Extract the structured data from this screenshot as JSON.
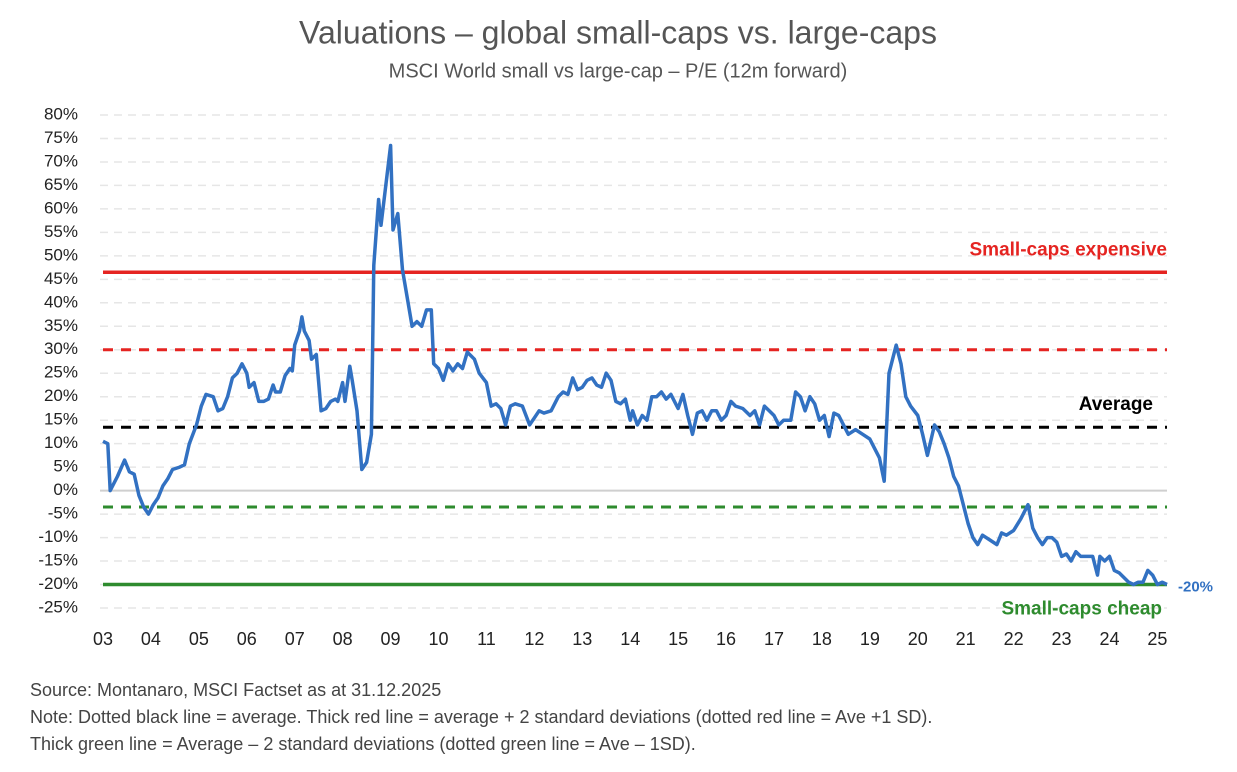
{
  "chart_data": {
    "type": "line",
    "title": "Valuations – global small-caps vs. large-caps",
    "subtitle": "MSCI World small vs large-cap – P/E (12m forward)",
    "color": "#3271c2",
    "x": [
      3.0,
      3.1,
      3.15,
      3.3,
      3.45,
      3.55,
      3.65,
      3.75,
      3.85,
      3.95,
      4.05,
      4.15,
      4.25,
      4.35,
      4.45,
      4.6,
      4.7,
      4.8,
      4.95,
      5.05,
      5.15,
      5.3,
      5.4,
      5.5,
      5.6,
      5.7,
      5.8,
      5.9,
      6.0,
      6.05,
      6.15,
      6.25,
      6.35,
      6.45,
      6.55,
      6.6,
      6.7,
      6.8,
      6.9,
      6.95,
      7.0,
      7.1,
      7.15,
      7.2,
      7.3,
      7.35,
      7.45,
      7.55,
      7.65,
      7.75,
      7.85,
      7.9,
      8.0,
      8.05,
      8.15,
      8.2,
      8.3,
      8.4,
      8.5,
      8.6,
      8.65,
      8.75,
      8.8,
      8.9,
      9.0,
      9.05,
      9.15,
      9.25,
      9.35,
      9.45,
      9.55,
      9.65,
      9.75,
      9.85,
      9.9,
      10.0,
      10.1,
      10.2,
      10.3,
      10.4,
      10.5,
      10.6,
      10.75,
      10.85,
      11.0,
      11.1,
      11.2,
      11.3,
      11.4,
      11.5,
      11.6,
      11.75,
      11.9,
      12.0,
      12.1,
      12.2,
      12.35,
      12.5,
      12.6,
      12.7,
      12.8,
      12.9,
      13.0,
      13.1,
      13.2,
      13.3,
      13.4,
      13.5,
      13.6,
      13.7,
      13.8,
      13.9,
      14.0,
      14.05,
      14.15,
      14.25,
      14.35,
      14.45,
      14.55,
      14.65,
      14.75,
      14.85,
      15.0,
      15.1,
      15.2,
      15.3,
      15.4,
      15.5,
      15.6,
      15.7,
      15.8,
      15.9,
      16.0,
      16.1,
      16.2,
      16.35,
      16.5,
      16.6,
      16.7,
      16.8,
      16.9,
      17.0,
      17.1,
      17.2,
      17.35,
      17.45,
      17.55,
      17.65,
      17.75,
      17.85,
      17.95,
      18.05,
      18.15,
      18.25,
      18.35,
      18.45,
      18.55,
      18.7,
      18.85,
      19.0,
      19.1,
      19.2,
      19.3,
      19.4,
      19.55,
      19.65,
      19.75,
      19.85,
      20.0,
      20.1,
      20.2,
      20.35,
      20.45,
      20.55,
      20.65,
      20.75,
      20.85,
      20.95,
      21.05,
      21.15,
      21.25,
      21.35,
      21.5,
      21.65,
      21.75,
      21.85,
      22.0,
      22.15,
      22.3,
      22.4,
      22.5,
      22.6,
      22.7,
      22.8,
      22.9,
      23.0,
      23.1,
      23.2,
      23.3,
      23.4,
      23.55,
      23.65,
      23.75,
      23.8,
      23.9,
      24.0,
      24.1,
      24.2,
      24.3,
      24.4,
      24.5,
      24.6,
      24.7,
      24.8,
      24.9,
      25.0,
      25.1,
      25.2
    ],
    "values": [
      10.5,
      10,
      0,
      3,
      6.5,
      4,
      3.5,
      -1,
      -3.5,
      -5,
      -3,
      -1.5,
      1,
      2.5,
      4.5,
      5,
      5.5,
      10,
      14,
      18,
      20.5,
      20,
      17,
      17.5,
      20,
      24,
      25,
      27,
      25,
      22,
      23,
      19,
      19,
      19.5,
      22.5,
      21,
      21,
      24.5,
      26,
      25.5,
      31,
      34,
      37,
      34,
      32,
      28,
      29,
      17,
      17.5,
      19,
      19.5,
      19,
      23,
      19,
      26.5,
      23.5,
      17,
      4.5,
      6,
      12,
      48,
      62,
      56.5,
      65,
      73.5,
      55.5,
      59,
      47,
      41,
      35,
      36,
      35,
      38.5,
      38.5,
      27,
      26,
      23.5,
      27,
      25.5,
      27,
      26,
      29.5,
      28,
      25,
      23,
      18,
      18.5,
      17.5,
      14,
      18,
      18.5,
      18,
      14,
      15.5,
      17,
      16.5,
      17,
      20,
      21,
      20.5,
      24,
      21.5,
      22,
      23.5,
      24,
      22.5,
      22,
      25,
      23.5,
      19,
      18.5,
      19.5,
      15,
      17,
      14,
      16,
      15,
      20,
      20,
      21,
      19.5,
      20.5,
      17.5,
      20.5,
      16,
      12,
      16.5,
      17,
      15,
      17,
      17,
      15,
      16,
      19,
      18,
      17.5,
      16,
      17,
      14,
      18,
      17,
      16,
      14,
      15,
      15,
      21,
      20,
      17,
      20,
      18.5,
      15,
      16,
      11.5,
      16.5,
      16,
      14,
      12,
      13,
      12,
      11,
      9,
      7,
      2,
      25,
      31,
      27,
      20,
      18,
      16,
      12,
      7.5,
      14,
      12.5,
      10,
      7,
      3,
      1,
      -3,
      -7,
      -10,
      -11.5,
      -9.5,
      -10.5,
      -11.5,
      -9,
      -9.5,
      -8.5,
      -6,
      -3,
      -8,
      -10,
      -11.5,
      -10,
      -10,
      -11,
      -14,
      -13.5,
      -15,
      -13,
      -14,
      -14,
      -14,
      -18,
      -14,
      -15,
      -14,
      -17,
      -17.5,
      -18.5,
      -19.5,
      -20,
      -19.5,
      -19.5,
      -17,
      -18,
      -20,
      -19.5,
      -20
    ],
    "xlim": [
      3,
      25.2
    ],
    "xticks": [
      {
        "value": 3,
        "label": "03"
      },
      {
        "value": 4,
        "label": "04"
      },
      {
        "value": 5,
        "label": "05"
      },
      {
        "value": 6,
        "label": "06"
      },
      {
        "value": 7,
        "label": "07"
      },
      {
        "value": 8,
        "label": "08"
      },
      {
        "value": 9,
        "label": "09"
      },
      10,
      11,
      12,
      13,
      14,
      15,
      16,
      17,
      18,
      19,
      20,
      21,
      22,
      23,
      24,
      25
    ],
    "ylim": [
      -25,
      80
    ],
    "yticks": [
      {
        "value": -25,
        "label": "-25%"
      },
      {
        "value": -20,
        "label": "-20%"
      },
      {
        "value": -15,
        "label": "-15%"
      },
      {
        "value": -10,
        "label": "-10%"
      },
      {
        "value": -5,
        "label": "-5%"
      },
      {
        "value": 0,
        "label": "0%"
      },
      {
        "value": 5,
        "label": "5%"
      },
      {
        "value": 10,
        "label": "10%"
      },
      {
        "value": 15,
        "label": "15%"
      },
      {
        "value": 20,
        "label": "20%"
      },
      {
        "value": 25,
        "label": "25%"
      },
      {
        "value": 30,
        "label": "30%"
      },
      {
        "value": 35,
        "label": "35%"
      },
      {
        "value": 40,
        "label": "40%"
      },
      {
        "value": 45,
        "label": "45%"
      },
      {
        "value": 50,
        "label": "50%"
      },
      {
        "value": 55,
        "label": "55%"
      },
      {
        "value": 60,
        "label": "60%"
      },
      {
        "value": 65,
        "label": "65%"
      },
      {
        "value": 70,
        "label": "70%"
      },
      {
        "value": 75,
        "label": "75%"
      },
      {
        "value": 80,
        "label": "80%"
      }
    ],
    "grid": true,
    "reference_lines": [
      {
        "value": 46.5,
        "color": "#e52421",
        "style": "solid",
        "label": "Small-caps expensive",
        "label_side": "above"
      },
      {
        "value": 30,
        "color": "#e52421",
        "style": "dashed"
      },
      {
        "value": 13.5,
        "color": "#000000",
        "style": "dashed",
        "label": "Average",
        "label_side": "above"
      },
      {
        "value": -3.5,
        "color": "#2e8b2e",
        "style": "dashed"
      },
      {
        "value": -20,
        "color": "#2e8b2e",
        "style": "solid",
        "label": "Small-caps cheap",
        "label_side": "below"
      }
    ],
    "end_label": {
      "value": -20,
      "label": "-20%"
    },
    "notes": [
      "Source: Montanaro, MSCI Factset as at 31.12.2025",
      "Note: Dotted black line = average. Thick red line = average + 2 standard deviations (dotted red line = Ave +1 SD).",
      "Thick green line = Average – 2 standard deviations (dotted green line = Ave – 1SD)."
    ]
  }
}
